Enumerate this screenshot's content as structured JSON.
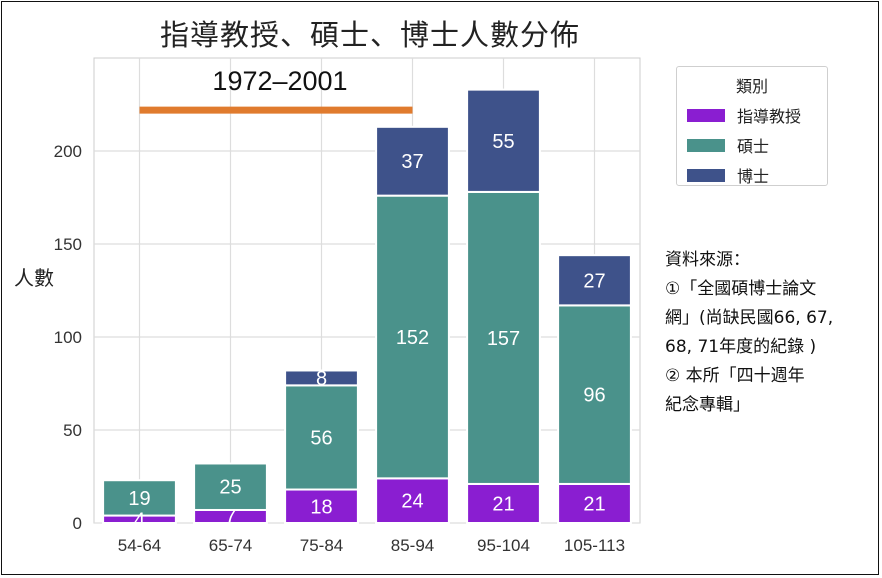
{
  "chart_data": {
    "type": "bar",
    "stacked": true,
    "title": "指導教授、碩士、博士人數分佈",
    "ylabel": "人數",
    "xlabel": "",
    "ylim": [
      0,
      250
    ],
    "yticks": [
      0,
      50,
      100,
      150,
      200
    ],
    "grid": true,
    "categories": [
      "54-64",
      "65-74",
      "75-84",
      "85-94",
      "95-104",
      "105-113"
    ],
    "series": [
      {
        "name": "指導教授",
        "color": "#8a1ed1",
        "values": [
          4,
          7,
          18,
          24,
          21,
          21
        ]
      },
      {
        "name": "碩士",
        "color": "#4a928b",
        "values": [
          19,
          25,
          56,
          152,
          157,
          96
        ]
      },
      {
        "name": "博士",
        "color": "#3e528a",
        "values": [
          0,
          0,
          8,
          37,
          55,
          27
        ]
      }
    ],
    "legend_title": "類別",
    "legend_position": "top-right",
    "annotation": {
      "text": "1972–2001",
      "color": "#e07b2e",
      "span_categories": [
        "54-64",
        "85-94"
      ],
      "y": 222
    }
  },
  "source_note": {
    "lines": [
      "資料來源：",
      "①「全國碩博士論文",
      "網」(尚缺民國66, 67,",
      "68, 71年度的紀錄 )",
      "② 本所「四十週年",
      "紀念專輯」"
    ]
  }
}
